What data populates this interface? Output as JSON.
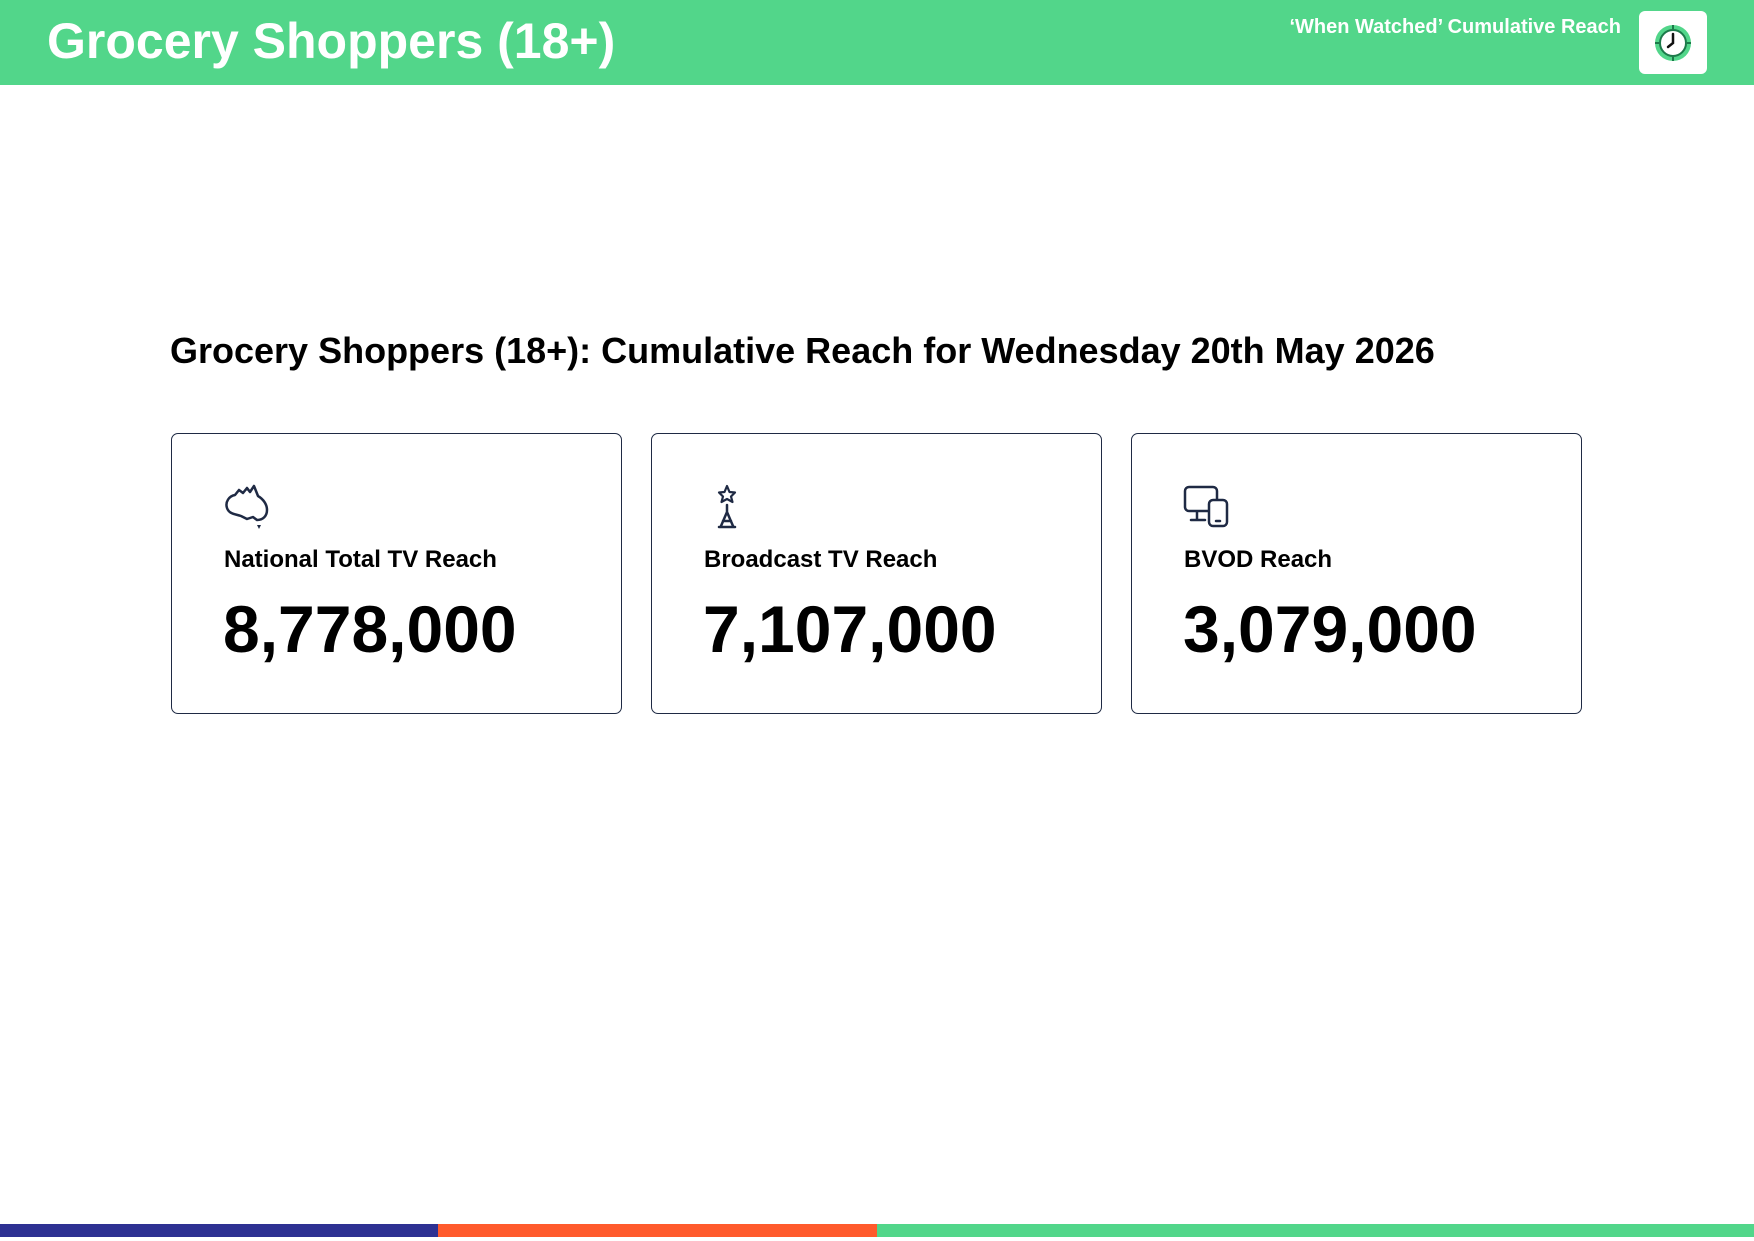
{
  "header": {
    "title": "Grocery Shoppers (18+)",
    "subtitle": "‘When Watched’ Cumulative Reach"
  },
  "heading": "Grocery Shoppers (18+): Cumulative Reach for Wednesday 20th May 2026",
  "cards": [
    {
      "label": "National Total TV Reach",
      "value": "8,778,000"
    },
    {
      "label": "Broadcast TV Reach",
      "value": "7,107,000"
    },
    {
      "label": "BVOD Reach",
      "value": "3,079,000"
    }
  ]
}
